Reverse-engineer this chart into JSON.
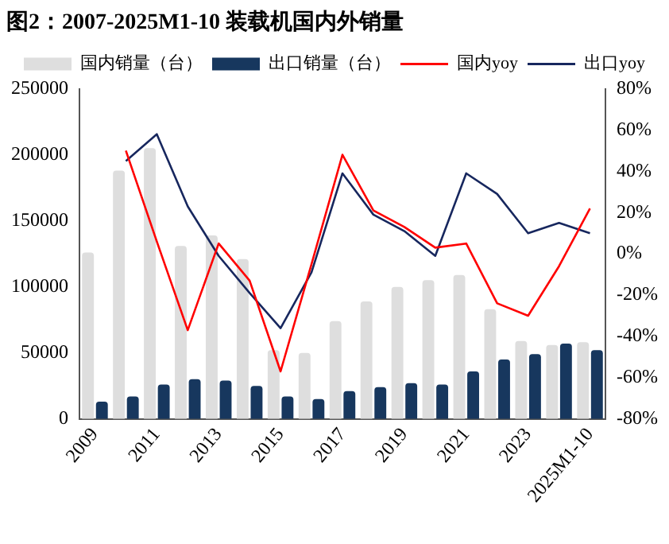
{
  "chart_data": {
    "type": "bar",
    "title": "图2：2007-2025M1-10 装载机国内外销量",
    "categories": [
      "2009",
      null,
      "2011",
      null,
      "2013",
      null,
      "2015",
      null,
      "2017",
      null,
      "2019",
      null,
      "2021",
      null,
      "2023",
      null,
      "2025M1-10"
    ],
    "series": [
      {
        "name": "国内销量（台）",
        "color": "#dedede",
        "values": [
          126000,
          188000,
          205000,
          131000,
          139000,
          121000,
          52000,
          50000,
          74000,
          89000,
          100000,
          105000,
          109000,
          83000,
          59000,
          56000,
          58000
        ]
      },
      {
        "name": "出口销量（台）",
        "color": "#17375e",
        "values": [
          13000,
          17000,
          26000,
          30000,
          29000,
          25000,
          17000,
          15000,
          21000,
          24000,
          27000,
          26000,
          36000,
          45000,
          49000,
          57000,
          52000
        ]
      },
      {
        "name": "国内yoy",
        "type": "line",
        "axis": "y2",
        "color": "#ff0000",
        "values": [
          null,
          50,
          6,
          -37,
          5,
          -13,
          -57,
          -5,
          48,
          21,
          13,
          3,
          5,
          -24,
          -30,
          -6,
          22
        ]
      },
      {
        "name": "出口yoy",
        "type": "line",
        "axis": "y2",
        "color": "#17275e",
        "values": [
          null,
          45,
          58,
          23,
          -1,
          -19,
          -36,
          -9,
          39,
          19,
          11,
          -1,
          39,
          29,
          10,
          15,
          10
        ]
      }
    ],
    "ylim": [
      0,
      250000
    ],
    "yticks": [
      0,
      50000,
      100000,
      150000,
      200000,
      250000
    ],
    "y2lim": [
      -80,
      80
    ],
    "y2ticks": [
      {
        "value": -80,
        "label": "-80%"
      },
      {
        "value": -60,
        "label": "-60%"
      },
      {
        "value": -40,
        "label": "-40%"
      },
      {
        "value": -20,
        "label": "-20%"
      },
      {
        "value": 0,
        "label": "0%"
      },
      {
        "value": 20,
        "label": "20%"
      },
      {
        "value": 40,
        "label": "40%"
      },
      {
        "value": 60,
        "label": "60%"
      },
      {
        "value": 80,
        "label": "80%"
      }
    ],
    "grid": false,
    "legend": "top",
    "marker": "none"
  }
}
